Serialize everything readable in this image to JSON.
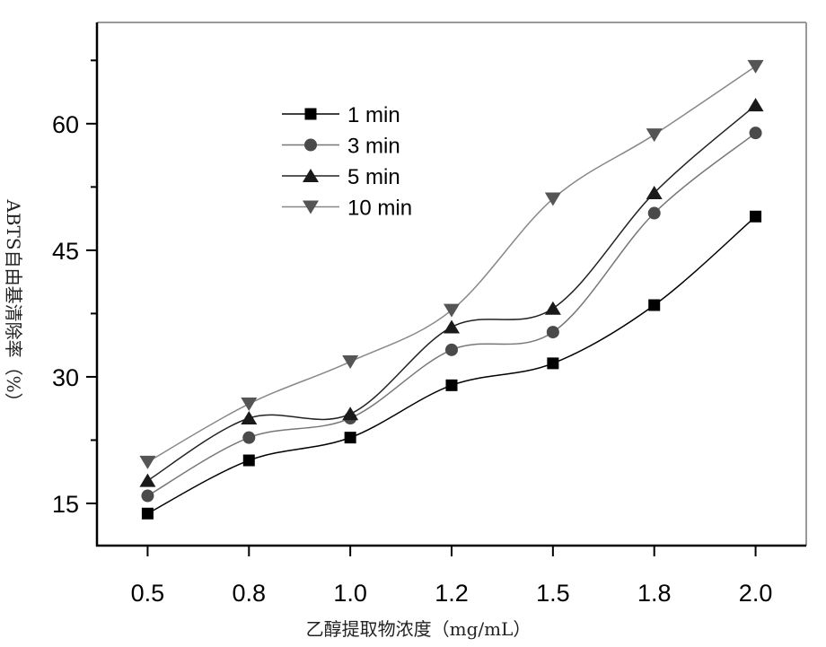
{
  "chart_data": {
    "type": "line",
    "title": "",
    "xlabel": "乙醇提取物浓度（mg/mL）",
    "ylabel": "ABTS自由基清除率（%）",
    "categories": [
      "0.5",
      "0.8",
      "1.0",
      "1.2",
      "1.5",
      "1.8",
      "2.0"
    ],
    "ylim": [
      10,
      72
    ],
    "yticks": [
      15,
      30,
      45,
      60
    ],
    "yticks_minor": [
      22.5,
      37.5,
      52.5,
      67.5
    ],
    "grid": false,
    "legend_placement": "top-left",
    "smoothed": true,
    "series": [
      {
        "name": "1 min",
        "marker": "square",
        "marker_color": "#000000",
        "line_color": "#000000",
        "values": [
          13.8,
          20.1,
          22.8,
          29.0,
          31.6,
          38.5,
          49.0
        ]
      },
      {
        "name": "3 min",
        "marker": "circle",
        "marker_color": "#4a4a4a",
        "line_color": "#777777",
        "values": [
          15.9,
          22.8,
          25.1,
          33.2,
          35.3,
          49.4,
          58.9
        ]
      },
      {
        "name": "5 min",
        "marker": "triangle-up",
        "marker_color": "#1a1a1a",
        "line_color": "#222222",
        "values": [
          17.7,
          25.1,
          25.6,
          35.9,
          38.1,
          51.8,
          62.2
        ]
      },
      {
        "name": "10 min",
        "marker": "triangle-down",
        "marker_color": "#555555",
        "line_color": "#888888",
        "values": [
          19.9,
          26.8,
          31.8,
          37.9,
          51.1,
          58.7,
          66.8
        ]
      }
    ]
  }
}
